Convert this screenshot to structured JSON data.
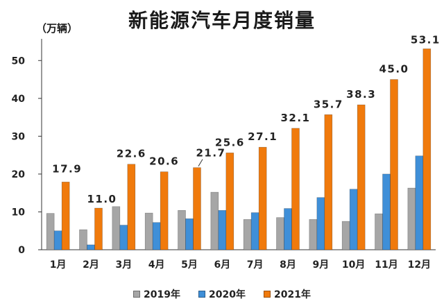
{
  "chart_data": {
    "type": "bar",
    "title": "新能源汽车月度销量",
    "unit_label": "（万辆）",
    "categories": [
      "1月",
      "2月",
      "3月",
      "4月",
      "5月",
      "6月",
      "7月",
      "8月",
      "9月",
      "10月",
      "11月",
      "12月"
    ],
    "series": [
      {
        "name": "2019年",
        "color": "#a6a6a6",
        "values": [
          9.6,
          5.3,
          11.4,
          9.7,
          10.4,
          15.2,
          8.0,
          8.5,
          8.0,
          7.5,
          9.5,
          16.3
        ]
      },
      {
        "name": "2020年",
        "color": "#3f8fd8",
        "values": [
          5.0,
          1.3,
          6.5,
          7.2,
          8.2,
          10.4,
          9.8,
          10.9,
          13.8,
          16.0,
          20.0,
          24.8
        ]
      },
      {
        "name": "2021年",
        "color": "#f07a0c",
        "values": [
          17.9,
          11.0,
          22.6,
          20.6,
          21.7,
          25.6,
          27.1,
          32.1,
          35.7,
          38.3,
          45.0,
          53.1
        ]
      }
    ],
    "data_labels_2021": [
      "17.9",
      "11.0",
      "22.6",
      "20.6",
      "21.7",
      "25.6",
      "27.1",
      "32.1",
      "35.7",
      "38.3",
      "45.0",
      "53.1"
    ],
    "y_ticks": [
      0,
      10,
      20,
      30,
      40,
      50
    ],
    "ylim": [
      0,
      55
    ],
    "xlabel": "",
    "ylabel": "万辆",
    "legend_position": "bottom-center",
    "grid": false
  }
}
